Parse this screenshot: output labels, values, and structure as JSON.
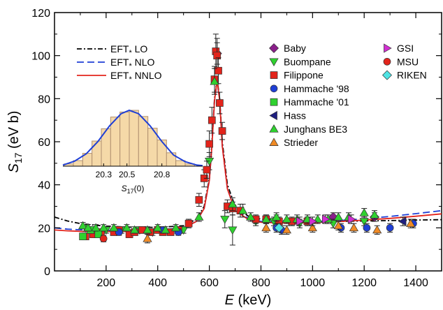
{
  "chart_data": [
    {
      "type": "scatter",
      "title": "",
      "xlabel": "E (keV)",
      "ylabel": "S17 (eV b)",
      "xlim": [
        0,
        1500
      ],
      "ylim": [
        0,
        120
      ],
      "x_ticks": [
        200,
        400,
        600,
        800,
        1000,
        1200,
        1400
      ],
      "y_ticks": [
        0,
        20,
        40,
        60,
        80,
        100,
        120
      ],
      "x_tick_labels": [
        "200",
        "400",
        "600",
        "800",
        "1000",
        "1200",
        "1400"
      ],
      "y_tick_labels": [
        "0",
        "20",
        "40",
        "60",
        "80",
        "100",
        "120"
      ],
      "grid": false,
      "lines": [
        {
          "name": "EFT* LO",
          "style": "dash-dot",
          "color": "#000000",
          "x": [
            0,
            50,
            100,
            150,
            200,
            300,
            400,
            500,
            550,
            580,
            600,
            610,
            620,
            630,
            640,
            650,
            670,
            700,
            750,
            800,
            900,
            1000,
            1100,
            1200,
            1300,
            1400,
            1500
          ],
          "y": [
            25.0,
            23.2,
            22.0,
            21.3,
            20.8,
            20.3,
            20.2,
            21.0,
            24.0,
            30.0,
            43.0,
            60.0,
            80.0,
            89.0,
            80.0,
            60.0,
            40.0,
            30.0,
            25.5,
            24.0,
            23.2,
            23.0,
            23.0,
            23.2,
            23.4,
            23.6,
            23.8
          ]
        },
        {
          "name": "EFT* NLO",
          "style": "dashed",
          "color": "#1f3fd6",
          "x": [
            0,
            50,
            100,
            150,
            200,
            300,
            400,
            500,
            550,
            580,
            600,
            610,
            620,
            630,
            640,
            650,
            670,
            700,
            750,
            800,
            900,
            1000,
            1100,
            1200,
            1300,
            1400,
            1500
          ],
          "y": [
            20.0,
            19.4,
            19.1,
            18.9,
            18.8,
            18.8,
            19.0,
            20.0,
            23.0,
            29.0,
            42.0,
            58.0,
            79.0,
            88.0,
            79.0,
            58.0,
            38.0,
            28.5,
            24.5,
            23.0,
            22.5,
            22.8,
            23.4,
            24.2,
            25.3,
            26.6,
            28.0
          ]
        },
        {
          "name": "EFT* NNLO",
          "style": "solid",
          "color": "#e3241b",
          "x": [
            0,
            50,
            100,
            150,
            200,
            300,
            400,
            500,
            550,
            580,
            600,
            610,
            620,
            630,
            640,
            650,
            670,
            700,
            750,
            800,
            900,
            1000,
            1100,
            1200,
            1300,
            1400,
            1500
          ],
          "y": [
            19.0,
            18.6,
            18.4,
            18.3,
            18.3,
            18.4,
            18.7,
            19.8,
            23.0,
            29.0,
            42.0,
            58.0,
            79.0,
            88.5,
            79.0,
            58.0,
            38.0,
            28.0,
            24.0,
            22.6,
            22.2,
            22.4,
            22.9,
            23.6,
            24.4,
            25.4,
            26.5
          ]
        }
      ],
      "series": [
        {
          "name": "Baby",
          "marker": "diamond",
          "color": "#8a1f8a",
          "x": [
            630,
            860,
            1080,
            1240
          ],
          "y": [
            101,
            24,
            25,
            25
          ],
          "yerr": [
            5,
            2,
            2,
            2
          ]
        },
        {
          "name": "Buompane",
          "marker": "triangle-down",
          "color": "#2fd12f",
          "x": [
            120,
            200,
            260,
            330,
            380,
            500,
            600,
            660,
            690,
            780,
            850,
            950,
            1080,
            1200
          ],
          "y": [
            20,
            19,
            19,
            19,
            18,
            19,
            51,
            24,
            19,
            23,
            23,
            22,
            22,
            23
          ],
          "yerr": [
            1.5,
            1.5,
            1.5,
            1.5,
            1.5,
            1.5,
            4,
            4,
            7,
            2,
            2,
            2,
            2,
            2
          ]
        },
        {
          "name": "Filippone",
          "marker": "square",
          "color": "#e3241b",
          "x": [
            120,
            150,
            180,
            230,
            250,
            290,
            310,
            340,
            370,
            400,
            420,
            450,
            480,
            520,
            560,
            580,
            590,
            600,
            610,
            620,
            625,
            630,
            635,
            640,
            650,
            670,
            690,
            720,
            780,
            820,
            870,
            920,
            980
          ],
          "y": [
            16,
            17,
            18,
            18,
            19,
            17,
            18,
            19,
            18,
            19,
            18,
            18,
            19,
            22,
            33,
            43,
            47,
            59,
            70,
            89,
            102,
            100,
            93,
            78,
            65,
            30,
            29,
            28,
            24,
            24,
            23,
            23,
            23
          ],
          "yerr": [
            1.5,
            1.5,
            1.5,
            1.5,
            1.5,
            1.5,
            1.5,
            1.5,
            1.5,
            1.5,
            1.5,
            1.5,
            1.5,
            2,
            3,
            4,
            4,
            6,
            6,
            6,
            8,
            8,
            6,
            5,
            4,
            3,
            3,
            3,
            2,
            2,
            2,
            2,
            2
          ]
        },
        {
          "name": "Hammache '98",
          "marker": "circle",
          "color": "#1f3fd6",
          "x": [
            250,
            420,
            480,
            860,
            880,
            1110,
            1210,
            1300,
            1390
          ],
          "y": [
            18,
            19,
            18,
            20,
            19,
            20,
            20,
            20,
            22
          ],
          "yerr": [
            1.5,
            1.5,
            1.5,
            2,
            2,
            2,
            2,
            2,
            2
          ]
        },
        {
          "name": "Hammache '01",
          "marker": "square",
          "color": "#2fd12f",
          "x": [
            110,
            140,
            170
          ],
          "y": [
            16,
            19,
            17
          ],
          "yerr": [
            1.5,
            1.5,
            1.5
          ]
        },
        {
          "name": "Hass",
          "marker": "triangle-left",
          "color": "#1f1f80",
          "x": [
            1350
          ],
          "y": [
            23
          ],
          "yerr": [
            2
          ]
        },
        {
          "name": "Junghans BE3",
          "marker": "triangle-up",
          "color": "#2fd12f",
          "x": [
            110,
            130,
            160,
            190,
            230,
            280,
            310,
            360,
            400,
            430,
            470,
            560,
            620,
            690,
            730,
            760,
            820,
            860,
            900,
            940,
            980,
            1020,
            1060,
            1100,
            1140,
            1200,
            1240
          ],
          "y": [
            21,
            20,
            20,
            20,
            20,
            20,
            19,
            19,
            20,
            19,
            20,
            25,
            88,
            31,
            28,
            25,
            24,
            25,
            24,
            24,
            24,
            24,
            24,
            25,
            25,
            27,
            26
          ],
          "yerr": [
            1.5,
            1.5,
            1.5,
            1.5,
            1.5,
            1.5,
            1.5,
            1.5,
            1.5,
            1.5,
            1.5,
            2,
            6,
            3,
            3,
            2,
            2,
            2,
            2,
            2,
            2,
            2,
            2,
            2,
            2,
            2,
            2
          ]
        },
        {
          "name": "Strieder",
          "marker": "triangle-up",
          "color": "#f08a24",
          "x": [
            360,
            820,
            900,
            1000,
            1100,
            1160,
            1250,
            1380
          ],
          "y": [
            15,
            20,
            19,
            20,
            21,
            20,
            19,
            22
          ],
          "yerr": [
            2,
            2,
            2,
            2,
            2,
            2,
            2,
            2
          ]
        },
        {
          "name": "GSI",
          "marker": "triangle-right",
          "color": "#d12fd1",
          "x": [
            950,
            1000,
            1050,
            1150
          ],
          "y": [
            23,
            23,
            24,
            24
          ],
          "yerr": [
            2,
            2,
            2,
            2
          ]
        },
        {
          "name": "MSU",
          "marker": "circle",
          "color": "#e3241b",
          "x": [
            190
          ],
          "y": [
            15
          ],
          "yerr": [
            1.5
          ]
        },
        {
          "name": "RIKEN",
          "marker": "diamond",
          "color": "#4fe3e3",
          "x": [
            870
          ],
          "y": [
            20
          ],
          "yerr": [
            2
          ]
        }
      ],
      "legend": "upper-left and upper-right"
    },
    {
      "type": "bar",
      "title": "",
      "xlabel": "S17(0)",
      "ylabel": "",
      "xlim": [
        19.95,
        21.15
      ],
      "x_ticks": [
        20.3,
        20.5,
        20.8
      ],
      "x_tick_labels": [
        "20.3",
        "20.5",
        "20.8"
      ],
      "bin_edges": [
        19.96,
        20.04,
        20.12,
        20.2,
        20.28,
        20.36,
        20.44,
        20.52,
        20.6,
        20.68,
        20.76,
        20.84,
        20.92,
        21.0,
        21.08
      ],
      "counts": [
        4,
        10,
        23,
        45,
        67,
        88,
        97,
        100,
        89,
        68,
        47,
        24,
        10,
        4
      ],
      "fit": {
        "name": "Gaussian",
        "color": "#1f3fd6",
        "x": [
          19.95,
          20.05,
          20.15,
          20.25,
          20.35,
          20.45,
          20.52,
          20.6,
          20.7,
          20.8,
          20.9,
          21.0,
          21.1,
          21.15
        ],
        "y": [
          2,
          9,
          22,
          44,
          72,
          94,
          100,
          94,
          72,
          44,
          20,
          8,
          2,
          1
        ]
      },
      "bar_color": "#f5d9a8",
      "bar_edge_color": "#b09070"
    }
  ]
}
